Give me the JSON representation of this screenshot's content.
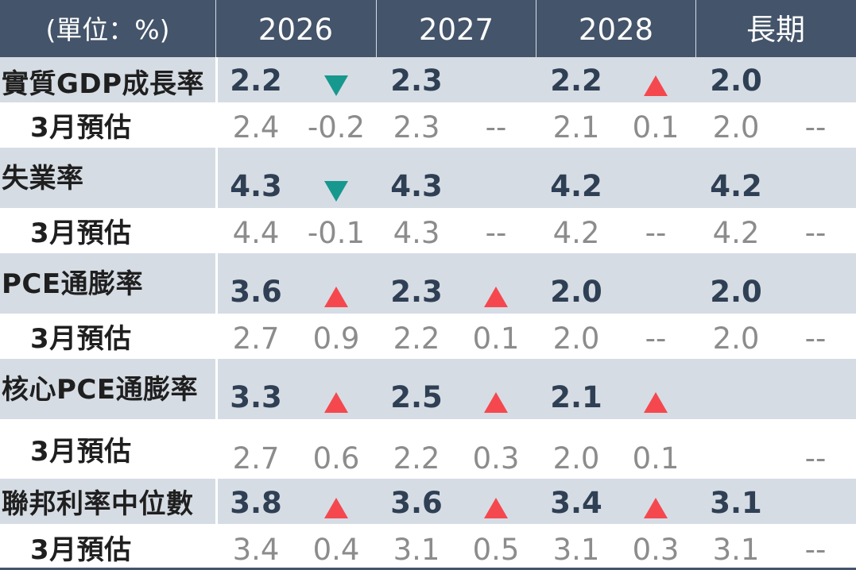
{
  "header": {
    "unit": "(單位：%)",
    "years": [
      "2026",
      "2027",
      "2028",
      "長期"
    ]
  },
  "colors": {
    "header_bg": "#44546a",
    "main_row_bg": "#d6dce4",
    "up_arrow": "#f5484e",
    "down_arrow": "#17988e"
  },
  "rows": [
    {
      "label": "實質GDP成長率",
      "values": [
        "2.2",
        "2.3",
        "2.2",
        "2.0"
      ],
      "arrows": [
        "down-triangle",
        "",
        "up-triangle",
        ""
      ],
      "estimate_label": "3月預估",
      "estimates": [
        "2.4",
        "2.3",
        "2.1",
        "2.0"
      ],
      "changes": [
        "-0.2",
        "--",
        "0.1",
        "--"
      ]
    },
    {
      "label": "失業率",
      "values": [
        "4.3",
        "4.3",
        "4.2",
        "4.2"
      ],
      "arrows": [
        "down-triangle",
        "",
        "",
        ""
      ],
      "estimate_label": "3月預估",
      "estimates": [
        "4.4",
        "4.3",
        "4.2",
        "4.2"
      ],
      "changes": [
        "-0.1",
        "--",
        "--",
        "--"
      ]
    },
    {
      "label": "PCE通膨率",
      "values": [
        "3.6",
        "2.3",
        "2.0",
        "2.0"
      ],
      "arrows": [
        "up-triangle",
        "up-triangle",
        "",
        ""
      ],
      "estimate_label": "3月預估",
      "estimates": [
        "2.7",
        "2.2",
        "2.0",
        "2.0"
      ],
      "changes": [
        "0.9",
        "0.1",
        "--",
        "--"
      ]
    },
    {
      "label": "核心PCE通膨率",
      "values": [
        "3.3",
        "2.5",
        "2.1",
        ""
      ],
      "arrows": [
        "up-triangle",
        "up-triangle",
        "up-triangle",
        ""
      ],
      "estimate_label": "3月預估",
      "estimates": [
        "2.7",
        "2.2",
        "2.0",
        ""
      ],
      "changes": [
        "0.6",
        "0.3",
        "0.1",
        "--"
      ]
    },
    {
      "label": "聯邦利率中位數",
      "values": [
        "3.8",
        "3.6",
        "3.4",
        "3.1"
      ],
      "arrows": [
        "up-triangle",
        "up-triangle",
        "up-triangle",
        ""
      ],
      "estimate_label": "3月預估",
      "estimates": [
        "3.4",
        "3.1",
        "3.1",
        "3.1"
      ],
      "changes": [
        "0.4",
        "0.5",
        "0.3",
        "--"
      ]
    }
  ]
}
